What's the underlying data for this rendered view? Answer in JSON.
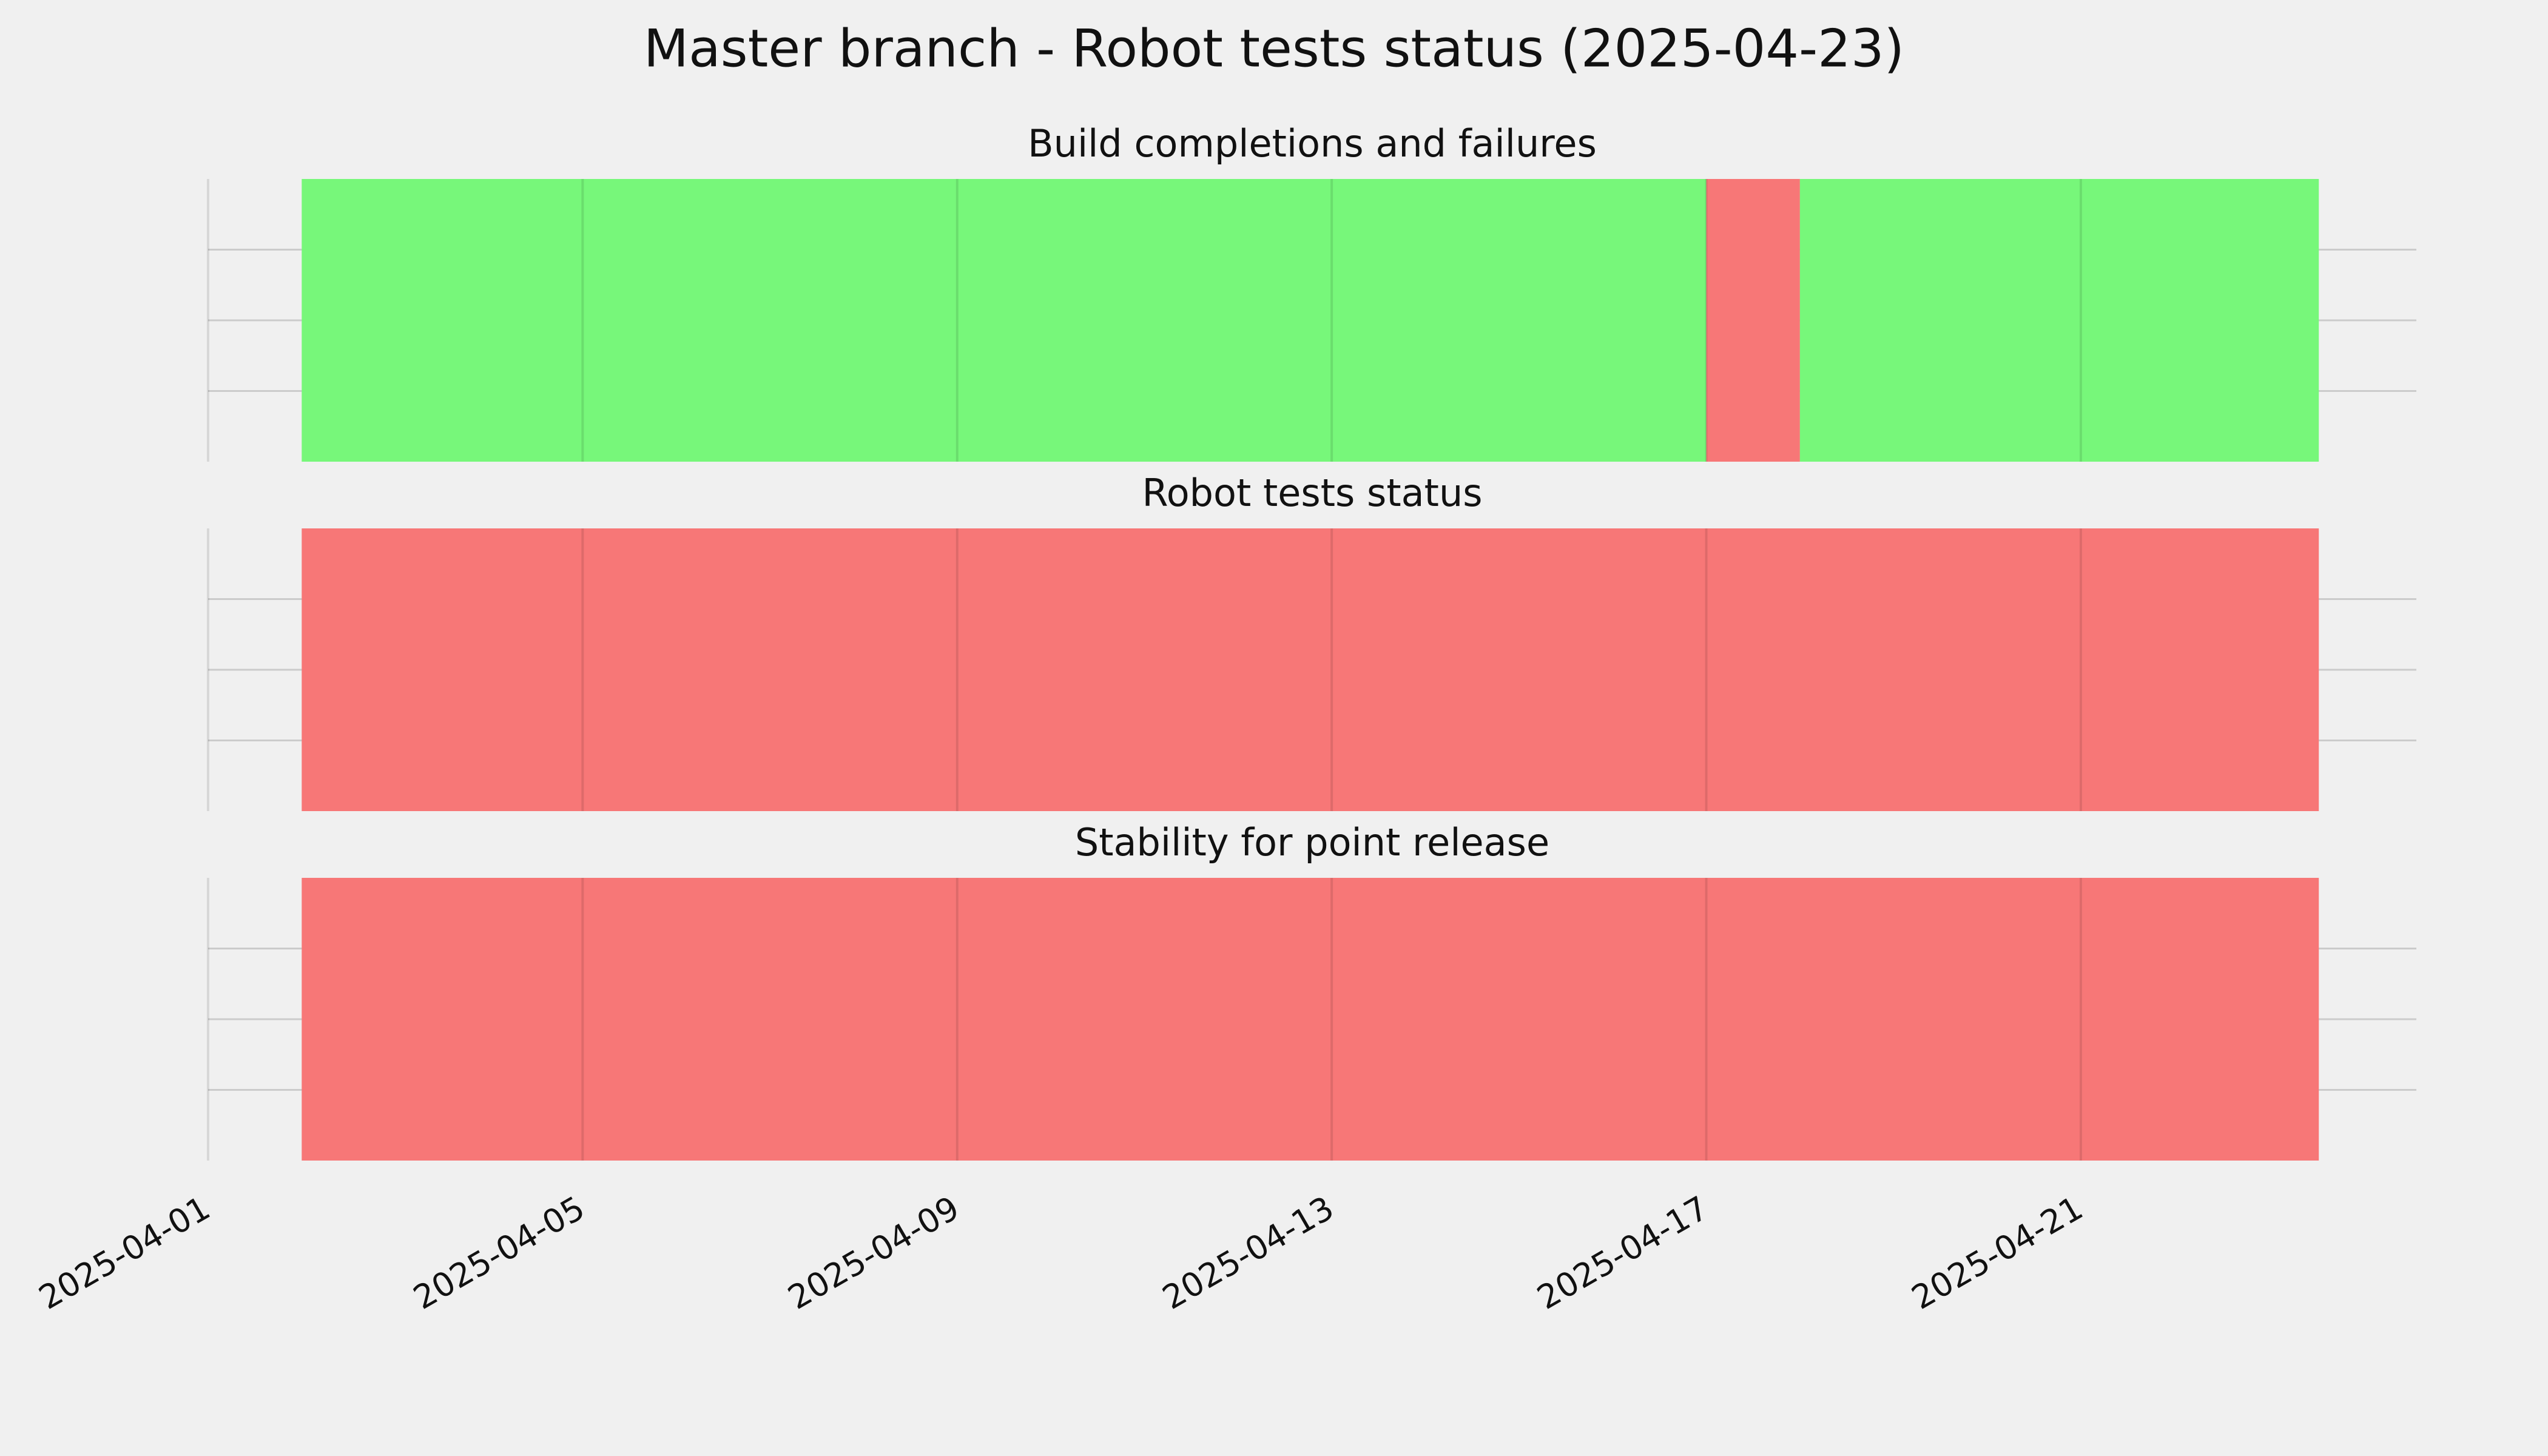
{
  "title": "Master branch - Robot tests status (2025-04-23)",
  "chart_data": [
    {
      "type": "timeline",
      "title": "Build completions and failures",
      "spans": [
        {
          "start": "2025-04-02",
          "end": "2025-04-17",
          "color": "#77f77a"
        },
        {
          "start": "2025-04-17",
          "end": "2025-04-18",
          "color": "#f77777"
        },
        {
          "start": "2025-04-18",
          "end": "2025-04-23T13:00Z",
          "color": "#77f77a"
        }
      ],
      "xlim": [
        "2025-04-01",
        "2025-04-24T14:00Z"
      ],
      "xticks": [
        "2025-04-01",
        "2025-04-05",
        "2025-04-09",
        "2025-04-13",
        "2025-04-17",
        "2025-04-21"
      ],
      "ylim": [
        0,
        1
      ],
      "yticks": [
        0.25,
        0.5,
        0.75
      ],
      "grid": true
    },
    {
      "type": "timeline",
      "title": "Robot tests status",
      "spans": [
        {
          "start": "2025-04-02",
          "end": "2025-04-23T13:00Z",
          "color": "#f77777"
        }
      ],
      "xlim": [
        "2025-04-01",
        "2025-04-24T14:00Z"
      ],
      "xticks": [
        "2025-04-01",
        "2025-04-05",
        "2025-04-09",
        "2025-04-13",
        "2025-04-17",
        "2025-04-21"
      ],
      "ylim": [
        0,
        1
      ],
      "yticks": [
        0.25,
        0.5,
        0.75
      ],
      "grid": true
    },
    {
      "type": "timeline",
      "title": "Stability for point release",
      "spans": [
        {
          "start": "2025-04-02",
          "end": "2025-04-23T13:00Z",
          "color": "#f77777"
        }
      ],
      "xlim": [
        "2025-04-01",
        "2025-04-24T14:00Z"
      ],
      "xticks": [
        "2025-04-01",
        "2025-04-05",
        "2025-04-09",
        "2025-04-13",
        "2025-04-17",
        "2025-04-21"
      ],
      "ylim": [
        0,
        1
      ],
      "yticks": [
        0.25,
        0.5,
        0.75
      ],
      "grid": true
    }
  ]
}
